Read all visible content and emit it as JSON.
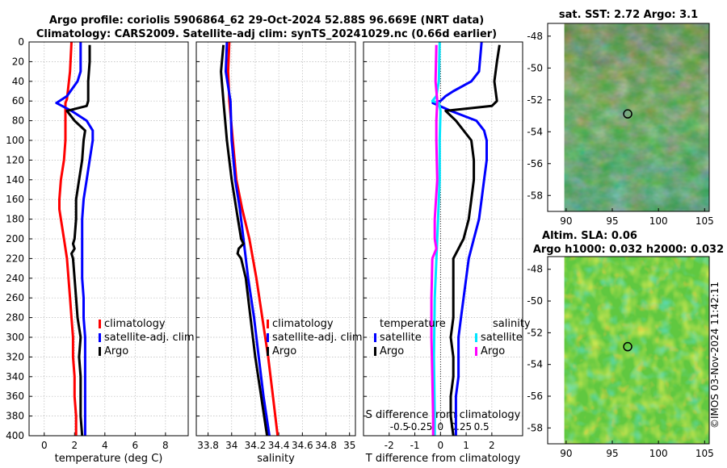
{
  "header": {
    "title_line1": "Argo profile: coriolis 5906864_62 29-Oct-2024 52.88S 96.669E (NRT data)",
    "title_line2": "Climatology: CARS2009. Satellite-adj clim: synTS_20241029.nc (0.66d earlier)"
  },
  "watermark": "©IMOS 03-Nov-2024 11:42:11",
  "colors": {
    "climatology": "#ff0000",
    "satellite": "#0000ff",
    "argo": "#000000",
    "sat_salinity": "#00e5ff",
    "argo_salinity": "#ff00ff"
  },
  "chart_data": [
    {
      "type": "line",
      "name": "temperature-profile",
      "xlabel": "temperature (deg C)",
      "ylabel": "depth",
      "xlim": [
        -1,
        9.5
      ],
      "ylim": [
        400,
        0
      ],
      "xticks": [
        "0",
        "2",
        "4",
        "6",
        "8"
      ],
      "xtick_values": [
        0,
        2,
        4,
        6,
        8
      ],
      "yticks": [
        "0",
        "20",
        "40",
        "60",
        "80",
        "100",
        "120",
        "140",
        "160",
        "180",
        "200",
        "220",
        "240",
        "260",
        "280",
        "300",
        "320",
        "340",
        "360",
        "380",
        "400"
      ],
      "ytick_values": [
        0,
        20,
        40,
        60,
        80,
        100,
        120,
        140,
        160,
        180,
        200,
        220,
        240,
        260,
        280,
        300,
        320,
        340,
        360,
        380,
        400
      ],
      "grid": true,
      "legend": [
        "climatology",
        "satellite-adj. clim",
        "Argo"
      ],
      "series": [
        {
          "name": "climatology",
          "color": "#ff0000",
          "depth": [
            0,
            30,
            58,
            62,
            80,
            100,
            120,
            140,
            160,
            170,
            180,
            200,
            220,
            240,
            260,
            280,
            300,
            320,
            340,
            360,
            380,
            400
          ],
          "values": [
            1.8,
            1.7,
            1.5,
            1.4,
            1.4,
            1.4,
            1.3,
            1.1,
            1.0,
            1.0,
            1.1,
            1.3,
            1.5,
            1.6,
            1.7,
            1.8,
            1.9,
            1.9,
            2.0,
            2.0,
            2.1,
            2.1
          ]
        },
        {
          "name": "satellite-adj. clim",
          "color": "#0000ff",
          "depth": [
            0,
            30,
            40,
            55,
            60,
            62,
            70,
            80,
            90,
            100,
            110,
            120,
            140,
            160,
            180,
            200,
            220,
            240,
            260,
            280,
            300,
            320,
            340,
            360,
            380,
            400
          ],
          "values": [
            2.4,
            2.4,
            2.2,
            1.5,
            1.0,
            0.8,
            1.8,
            2.8,
            3.2,
            3.2,
            3.1,
            3.0,
            2.8,
            2.6,
            2.5,
            2.5,
            2.5,
            2.5,
            2.6,
            2.6,
            2.7,
            2.7,
            2.7,
            2.7,
            2.7,
            2.7
          ]
        },
        {
          "name": "Argo",
          "color": "#000000",
          "depth": [
            3,
            20,
            40,
            60,
            65,
            70,
            80,
            90,
            100,
            120,
            140,
            160,
            180,
            200,
            205,
            210,
            215,
            220,
            240,
            260,
            280,
            300,
            320,
            340,
            360,
            380,
            400
          ],
          "values": [
            3.0,
            3.0,
            2.9,
            2.9,
            2.8,
            1.5,
            2.0,
            2.7,
            2.6,
            2.5,
            2.3,
            2.1,
            2.1,
            2.0,
            1.9,
            2.0,
            1.8,
            1.9,
            2.0,
            2.1,
            2.2,
            2.4,
            2.3,
            2.4,
            2.4,
            2.4,
            2.5
          ]
        }
      ]
    },
    {
      "type": "line",
      "name": "salinity-profile",
      "xlabel": "salinity",
      "ylabel": "depth",
      "xlim": [
        33.7,
        35.05
      ],
      "ylim": [
        400,
        0
      ],
      "xticks": [
        "33.8",
        "34",
        "34.2",
        "34.4",
        "34.6",
        "34.8",
        "35"
      ],
      "xtick_values": [
        33.8,
        34.0,
        34.2,
        34.4,
        34.6,
        34.8,
        35.0
      ],
      "grid": true,
      "legend": [
        "climatology",
        "satellite-adj. clim",
        "Argo"
      ],
      "series": [
        {
          "name": "climatology",
          "color": "#ff0000",
          "depth": [
            0,
            30,
            60,
            100,
            140,
            170,
            200,
            240,
            280,
            320,
            360,
            400
          ],
          "values": [
            33.98,
            33.97,
            33.98,
            34.01,
            34.04,
            34.09,
            34.15,
            34.21,
            34.26,
            34.31,
            34.35,
            34.39
          ]
        },
        {
          "name": "satellite-adj. clim",
          "color": "#0000ff",
          "depth": [
            0,
            30,
            60,
            100,
            140,
            170,
            200,
            240,
            280,
            320,
            360,
            400
          ],
          "values": [
            33.96,
            33.95,
            33.99,
            34.0,
            34.03,
            34.07,
            34.1,
            34.14,
            34.19,
            34.23,
            34.27,
            34.32
          ]
        },
        {
          "name": "Argo",
          "color": "#000000",
          "depth": [
            3,
            30,
            60,
            100,
            140,
            170,
            200,
            205,
            210,
            215,
            220,
            240,
            280,
            320,
            360,
            400
          ],
          "values": [
            33.93,
            33.91,
            33.93,
            33.96,
            34.0,
            34.04,
            34.08,
            34.1,
            34.06,
            34.05,
            34.08,
            34.12,
            34.16,
            34.2,
            34.25,
            34.3
          ]
        }
      ]
    },
    {
      "type": "line",
      "name": "difference-profile",
      "xlabel": "T difference from climatology",
      "x2label": "S difference from climatology",
      "ylabel": "depth",
      "xlim": [
        -3,
        3.2
      ],
      "ylim": [
        400,
        0
      ],
      "xticks": [
        "-2",
        "-1",
        "0",
        "1",
        "2"
      ],
      "xtick_values": [
        -2,
        -1,
        0,
        1,
        2
      ],
      "x2ticks": [
        "-0.5",
        "-0.25",
        "0",
        "0.25",
        "0.5"
      ],
      "x2tick_values": [
        -0.5,
        -0.25,
        0,
        0.25,
        0.5
      ],
      "grid": true,
      "legend_temperature_title": "temperature",
      "legend_salinity_title": "salinity",
      "legend": [
        "satellite",
        "Argo",
        "satellite",
        "Argo"
      ],
      "series": [
        {
          "name": "T satellite",
          "color": "#0000ff",
          "depth": [
            0,
            30,
            40,
            50,
            55,
            60,
            62,
            70,
            80,
            90,
            100,
            120,
            140,
            160,
            180,
            200,
            220,
            240,
            260,
            280,
            300,
            320,
            340,
            360,
            380,
            400
          ],
          "values": [
            1.6,
            1.5,
            1.2,
            0.5,
            0.2,
            0.0,
            -0.3,
            0.4,
            1.4,
            1.7,
            1.8,
            1.8,
            1.7,
            1.6,
            1.5,
            1.3,
            1.1,
            1.0,
            0.9,
            0.8,
            0.7,
            0.7,
            0.7,
            0.6,
            0.6,
            0.6
          ]
        },
        {
          "name": "T Argo",
          "color": "#000000",
          "depth": [
            3,
            20,
            40,
            60,
            65,
            70,
            80,
            100,
            120,
            140,
            160,
            180,
            200,
            205,
            210,
            215,
            220,
            240,
            260,
            280,
            300,
            320,
            340,
            360,
            380,
            400
          ],
          "values": [
            2.3,
            2.2,
            2.1,
            2.2,
            2.0,
            0.2,
            0.6,
            1.2,
            1.3,
            1.3,
            1.2,
            1.1,
            0.9,
            0.8,
            0.7,
            0.6,
            0.5,
            0.5,
            0.5,
            0.5,
            0.4,
            0.5,
            0.5,
            0.4,
            0.4,
            0.5
          ]
        },
        {
          "name": "S satellite",
          "color": "#00e5ff",
          "depth": [
            0,
            40,
            55,
            60,
            62,
            70,
            100,
            140,
            200,
            260,
            320,
            380,
            400
          ],
          "values": [
            -0.01,
            -0.02,
            -0.05,
            -0.1,
            -0.02,
            0.0,
            -0.01,
            -0.01,
            -0.04,
            -0.07,
            -0.08,
            -0.07,
            -0.07
          ]
        },
        {
          "name": "S Argo",
          "color": "#ff00ff",
          "depth": [
            3,
            40,
            60,
            80,
            100,
            140,
            180,
            200,
            210,
            220,
            260,
            300,
            340,
            380,
            400
          ],
          "values": [
            -0.05,
            -0.06,
            -0.04,
            -0.05,
            -0.05,
            -0.04,
            -0.07,
            -0.07,
            -0.05,
            -0.1,
            -0.11,
            -0.11,
            -0.1,
            -0.09,
            -0.09
          ]
        }
      ]
    },
    {
      "type": "heatmap",
      "name": "sst-map",
      "title": "sat. SST: 2.72 Argo: 3.1",
      "xlim": [
        88,
        105.5
      ],
      "ylim": [
        -59,
        -47.2
      ],
      "xticks": [
        "90",
        "95",
        "100",
        "105"
      ],
      "xtick_values": [
        90,
        95,
        100,
        105
      ],
      "yticks": [
        "-48",
        "-50",
        "-52",
        "-54",
        "-56",
        "-58"
      ],
      "ytick_values": [
        -48,
        -50,
        -52,
        -54,
        -56,
        -58
      ],
      "argo_position": {
        "lon": 96.669,
        "lat": -52.88
      }
    },
    {
      "type": "heatmap",
      "name": "sla-map",
      "title": "Altim. SLA: 0.06",
      "subtitle": "Argo h1000: 0.032 h2000: 0.032",
      "xlim": [
        88,
        105.5
      ],
      "ylim": [
        -59,
        -47.2
      ],
      "xticks": [
        "90",
        "95",
        "100",
        "105"
      ],
      "xtick_values": [
        90,
        95,
        100,
        105
      ],
      "yticks": [
        "-48",
        "-50",
        "-52",
        "-54",
        "-56",
        "-58"
      ],
      "ytick_values": [
        -48,
        -50,
        -52,
        -54,
        -56,
        -58
      ],
      "argo_position": {
        "lon": 96.669,
        "lat": -52.88
      }
    }
  ]
}
